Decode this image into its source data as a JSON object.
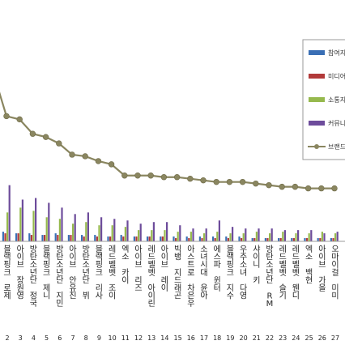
{
  "chart_data": {
    "type": "bar",
    "title": "",
    "xlabel": "",
    "ylabel": "",
    "ranks": [
      "2",
      "3",
      "4",
      "5",
      "6",
      "7",
      "8",
      "9",
      "10",
      "11",
      "12",
      "13",
      "14",
      "15",
      "16",
      "17",
      "18",
      "19",
      "20",
      "21",
      "22",
      "23",
      "24",
      "25",
      "26",
      "27"
    ],
    "categories": [
      "블랙핑크 로제",
      "아이브 장원영",
      "방탄소년단 정국",
      "블랙핑크 제니",
      "방탄소년단 지민",
      "아이브 안유진",
      "방탄소년단 뷔",
      "블랙핑크 리사",
      "레드벨벳 조이",
      "엑소 카이",
      "아이브 리즈",
      "레드벨벳 아이린",
      "아이브 레이",
      "빅뱅 지드래곤",
      "아스트로 차은우",
      "소녀시대 윤아",
      "에스파 윈터",
      "블랙핑크 지수",
      "우주소녀 다영",
      "샤이니 키",
      "방탄소년단 RM",
      "레드벨벳 슬기",
      "레드벨벳 웬디",
      "엑소 백현",
      "아이브 가을",
      "오마이걸 미미"
    ],
    "series": [
      {
        "name": "참여지수",
        "color": "#3a6fb5",
        "values": [
          6,
          5,
          5,
          4,
          5,
          4,
          4,
          4,
          3,
          4,
          3,
          3,
          3,
          3,
          3,
          3,
          3,
          3,
          3,
          2,
          2,
          2,
          2,
          2,
          2,
          2
        ]
      },
      {
        "name": "미디어지수",
        "color": "#b23a3a",
        "values": [
          5,
          5,
          4,
          4,
          4,
          4,
          3,
          3,
          3,
          3,
          3,
          3,
          3,
          2,
          2,
          2,
          2,
          2,
          2,
          2,
          2,
          2,
          2,
          2,
          2,
          2
        ]
      },
      {
        "name": "소통지수",
        "color": "#96b94d",
        "values": [
          18,
          21,
          19,
          15,
          14,
          11,
          12,
          10,
          10,
          9,
          7,
          7,
          7,
          6,
          6,
          5,
          6,
          5,
          5,
          6,
          5,
          6,
          5,
          5,
          6,
          5
        ]
      },
      {
        "name": "커뮤니티지수",
        "color": "#6d4c9b",
        "values": [
          35,
          26,
          27,
          24,
          21,
          17,
          18,
          15,
          14,
          13,
          11,
          12,
          12,
          10,
          8,
          8,
          13,
          9,
          8,
          8,
          8,
          7,
          7,
          7,
          5,
          6
        ]
      }
    ],
    "line": {
      "name": "브랜드평판지수",
      "color": "#8a8660",
      "values": [
        78,
        76,
        67,
        65,
        61,
        54,
        53,
        50,
        48,
        41,
        41,
        41,
        40,
        40,
        39,
        38,
        37,
        37,
        37,
        36,
        35,
        34,
        34,
        33,
        33,
        33
      ]
    },
    "line_start": 98,
    "ylim": [
      0,
      110
    ],
    "grid": false,
    "legend_position": "right"
  }
}
